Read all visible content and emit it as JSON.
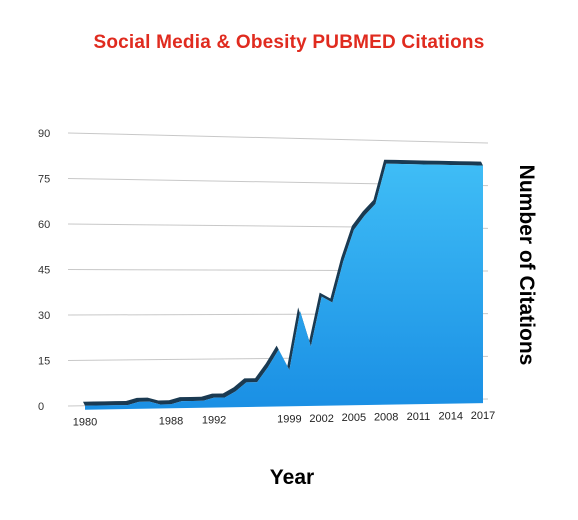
{
  "chart_data": {
    "type": "area",
    "title": "Social Media & Obesity PUBMED Citations",
    "xlabel": "Year",
    "ylabel": "Number of Citations",
    "ylim": [
      0,
      90
    ],
    "yticks": [
      0,
      15,
      30,
      45,
      60,
      75,
      90
    ],
    "xtick_labels": [
      "1980",
      "1988",
      "1992",
      "1999",
      "2002",
      "2005",
      "2008",
      "2011",
      "2014",
      "2017"
    ],
    "grid": true,
    "x": [
      1980,
      1981,
      1982,
      1983,
      1984,
      1985,
      1986,
      1987,
      1988,
      1989,
      1990,
      1991,
      1992,
      1993,
      1994,
      1995,
      1996,
      1997,
      1998,
      1999,
      2000,
      2001,
      2002,
      2003,
      2004,
      2005,
      2006,
      2007,
      2008,
      2009,
      2010,
      2011,
      2012,
      2013,
      2014,
      2015,
      2016,
      2017
    ],
    "series": [
      {
        "values": [
          0,
          0,
          0,
          0,
          0,
          1,
          1,
          0,
          0,
          1,
          1,
          1,
          2,
          2,
          4,
          7,
          7,
          12,
          18,
          11,
          31,
          19,
          36,
          34,
          48,
          59,
          64,
          68,
          82,
          82,
          82,
          82,
          82,
          82,
          82,
          82,
          82,
          82
        ]
      }
    ],
    "colors": {
      "fill_top": "#3fbdf6",
      "fill_bottom": "#1a8fe4",
      "edge": "#1a3a52",
      "title": "#e02b1f",
      "grid": "#c8c8c8"
    }
  }
}
